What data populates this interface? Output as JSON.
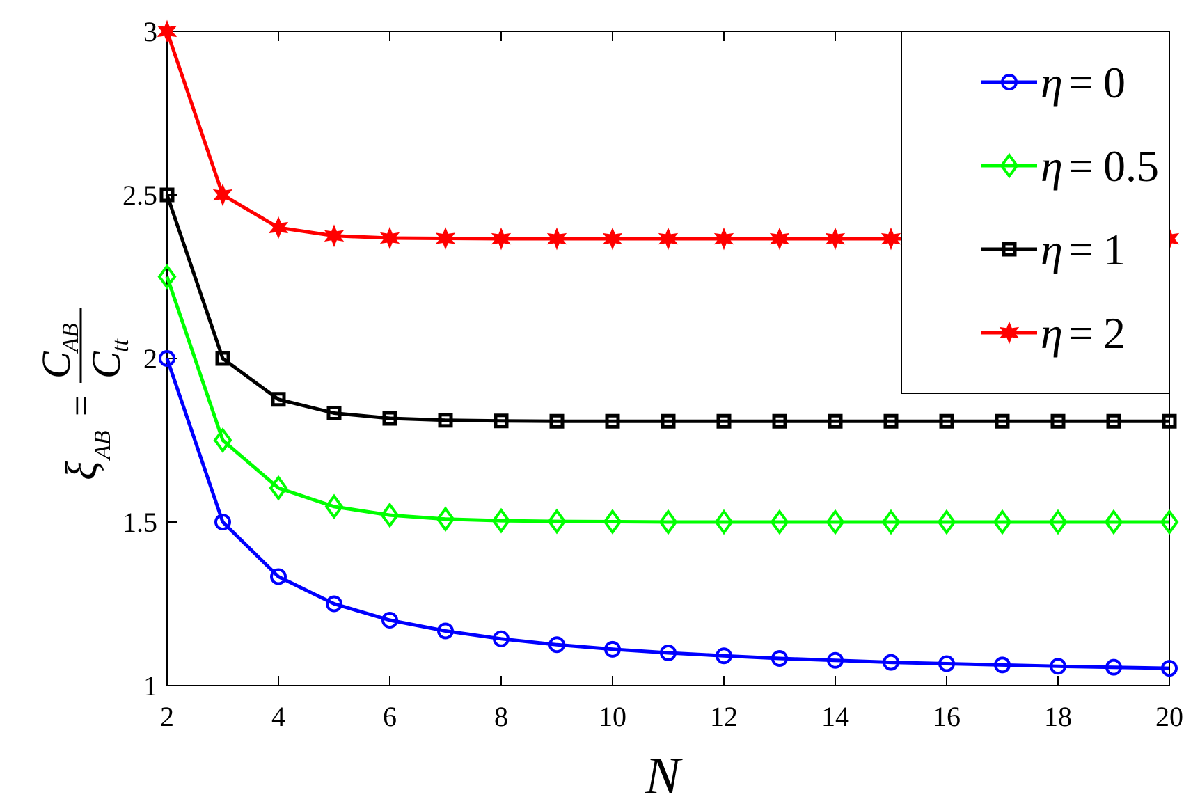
{
  "chart_data": {
    "type": "line",
    "title": "",
    "xlabel": "N",
    "ylabel": {
      "lhs": "ξ",
      "lhs_sub": "AB",
      "equals": "=",
      "numerator": "C",
      "numerator_sub": "AB",
      "denominator": "C",
      "denominator_sub": "tt"
    },
    "xlim": [
      2,
      20
    ],
    "ylim": [
      1,
      3
    ],
    "xticks": [
      2,
      4,
      6,
      8,
      10,
      12,
      14,
      16,
      18,
      20
    ],
    "yticks": [
      1,
      1.5,
      2,
      2.5,
      3
    ],
    "ytick_labels": [
      "1",
      "1.5",
      "2",
      "2.5",
      "3"
    ],
    "grid": false,
    "legend_position": "top-right",
    "x": [
      2,
      3,
      4,
      5,
      6,
      7,
      8,
      9,
      10,
      11,
      12,
      13,
      14,
      15,
      16,
      17,
      18,
      19,
      20
    ],
    "series": [
      {
        "name": "η = 0",
        "name_symbol": "η",
        "name_eq": "=",
        "name_value": "0",
        "color": "#0000ff",
        "marker": "circle",
        "values": [
          2.0,
          1.5,
          1.333,
          1.25,
          1.2,
          1.167,
          1.143,
          1.125,
          1.111,
          1.1,
          1.091,
          1.083,
          1.077,
          1.071,
          1.067,
          1.063,
          1.059,
          1.056,
          1.053
        ]
      },
      {
        "name": "η = 0.5",
        "name_symbol": "η",
        "name_eq": "=",
        "name_value": "0.5",
        "color": "#00ff00",
        "marker": "diamond",
        "values": [
          2.25,
          1.75,
          1.604,
          1.547,
          1.521,
          1.509,
          1.504,
          1.502,
          1.501,
          1.5,
          1.5,
          1.5,
          1.5,
          1.5,
          1.5,
          1.5,
          1.5,
          1.5,
          1.5
        ]
      },
      {
        "name": "η = 1",
        "name_symbol": "η",
        "name_eq": "=",
        "name_value": "1",
        "color": "#000000",
        "marker": "square",
        "values": [
          2.5,
          2.0,
          1.875,
          1.833,
          1.817,
          1.811,
          1.809,
          1.808,
          1.808,
          1.808,
          1.808,
          1.808,
          1.808,
          1.808,
          1.808,
          1.808,
          1.808,
          1.808,
          1.808
        ]
      },
      {
        "name": "η = 2",
        "name_symbol": "η",
        "name_eq": "=",
        "name_value": "2",
        "color": "#ff0000",
        "marker": "star",
        "values": [
          3.0,
          2.5,
          2.4,
          2.375,
          2.368,
          2.367,
          2.366,
          2.366,
          2.366,
          2.366,
          2.366,
          2.366,
          2.366,
          2.366,
          2.366,
          2.366,
          2.366,
          2.366,
          2.366
        ]
      }
    ]
  }
}
